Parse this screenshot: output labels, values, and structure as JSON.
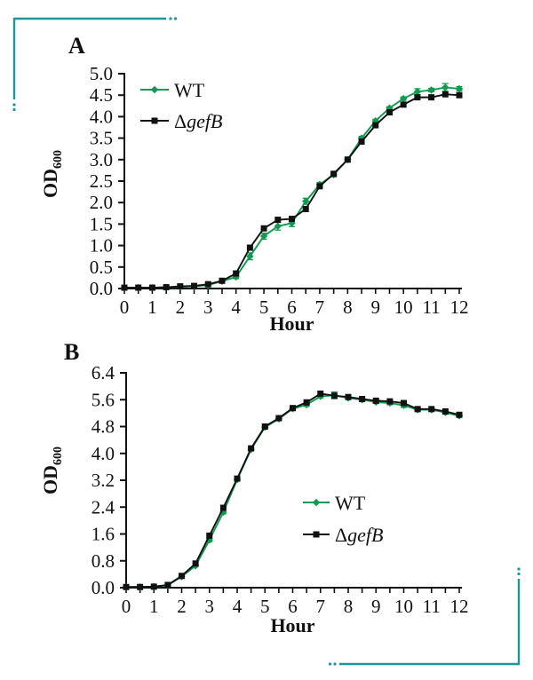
{
  "figure": {
    "background": "#ffffff",
    "bracket_color": "#1e9598"
  },
  "chart_data": [
    {
      "id": "A",
      "panel_label": "A",
      "type": "line",
      "title": "",
      "xlabel": "Hour",
      "ylabel": "OD",
      "ylabel_subscript": "600",
      "xlim": [
        0,
        12
      ],
      "ylim": [
        0,
        5.0
      ],
      "ytick_step": 0.5,
      "xtick_minor_step": 0.5,
      "xtick_label_step": 1,
      "ytick_labels": [
        "0.0",
        "0.5",
        "1.0",
        "1.5",
        "2.0",
        "2.5",
        "3.0",
        "3.5",
        "4.0",
        "4.5",
        "5.0"
      ],
      "xtick_labels": [
        "0",
        "1",
        "2",
        "3",
        "4",
        "5",
        "6",
        "7",
        "8",
        "9",
        "10",
        "11",
        "12"
      ],
      "grid": false,
      "legend_position": "upper-left-inside",
      "x": [
        0,
        0.5,
        1,
        1.5,
        2,
        2.5,
        3,
        3.5,
        4,
        4.5,
        5,
        5.5,
        6,
        6.5,
        7,
        7.5,
        8,
        8.5,
        9,
        9.5,
        10,
        10.5,
        11,
        11.5,
        12
      ],
      "series": [
        {
          "name": "WT",
          "label_prefix": "",
          "label_italic": "",
          "label_plain": "WT",
          "color": "#0f9b4f",
          "marker": "diamond",
          "values": [
            0.02,
            0.02,
            0.02,
            0.03,
            0.04,
            0.05,
            0.08,
            0.17,
            0.27,
            0.75,
            1.22,
            1.45,
            1.52,
            2.03,
            2.42,
            2.65,
            3.0,
            3.5,
            3.9,
            4.2,
            4.42,
            4.58,
            4.62,
            4.68,
            4.65
          ],
          "err": [
            0,
            0,
            0,
            0,
            0,
            0,
            0,
            0,
            0.04,
            0.08,
            0.07,
            0.09,
            0.08,
            0.07,
            0.05,
            0.05,
            0.04,
            0.04,
            0.04,
            0.03,
            0.04,
            0.07,
            0.04,
            0.09,
            0.05
          ]
        },
        {
          "name": "ΔgefB",
          "label_prefix": "Δ",
          "label_italic": "gefB",
          "label_plain": "",
          "color": "#111111",
          "marker": "square",
          "values": [
            0.02,
            0.02,
            0.02,
            0.03,
            0.05,
            0.06,
            0.1,
            0.18,
            0.35,
            0.95,
            1.4,
            1.6,
            1.62,
            1.85,
            2.38,
            2.67,
            3.0,
            3.42,
            3.8,
            4.1,
            4.28,
            4.45,
            4.45,
            4.52,
            4.5
          ],
          "err": [
            0,
            0,
            0,
            0,
            0,
            0,
            0,
            0,
            0,
            0,
            0,
            0,
            0,
            0,
            0,
            0,
            0,
            0,
            0,
            0,
            0,
            0,
            0,
            0,
            0
          ]
        }
      ]
    },
    {
      "id": "B",
      "panel_label": "B",
      "type": "line",
      "title": "",
      "xlabel": "Hour",
      "ylabel": "OD",
      "ylabel_subscript": "600",
      "xlim": [
        0,
        12
      ],
      "ylim": [
        0,
        6.4
      ],
      "ytick_step": 0.8,
      "xtick_minor_step": 0.5,
      "xtick_label_step": 1,
      "ytick_labels": [
        "0.0",
        "0.8",
        "1.6",
        "2.4",
        "3.2",
        "4.0",
        "4.8",
        "5.6",
        "6.4"
      ],
      "xtick_labels": [
        "0",
        "1",
        "2",
        "3",
        "4",
        "5",
        "6",
        "7",
        "8",
        "9",
        "10",
        "11",
        "12"
      ],
      "grid": false,
      "legend_position": "center-right-inside",
      "x": [
        0,
        0.5,
        1,
        1.5,
        2,
        2.5,
        3,
        3.5,
        4,
        4.5,
        5,
        5.5,
        6,
        6.5,
        7,
        7.5,
        8,
        8.5,
        9,
        9.5,
        10,
        10.5,
        11,
        11.5,
        12
      ],
      "series": [
        {
          "name": "WT",
          "label_prefix": "",
          "label_italic": "",
          "label_plain": "WT",
          "color": "#0f9b4f",
          "marker": "diamond",
          "values": [
            0.02,
            0.02,
            0.03,
            0.07,
            0.33,
            0.65,
            1.42,
            2.25,
            3.22,
            4.12,
            4.78,
            5.03,
            5.33,
            5.45,
            5.7,
            5.73,
            5.65,
            5.6,
            5.53,
            5.5,
            5.43,
            5.3,
            5.3,
            5.22,
            5.12
          ],
          "err": [
            0,
            0,
            0,
            0,
            0,
            0,
            0.05,
            0.05,
            0.04,
            0.04,
            0.03,
            0.03,
            0.04,
            0.05,
            0.05,
            0.1,
            0.04,
            0.04,
            0.04,
            0.05,
            0.06,
            0.04,
            0.04,
            0.04,
            0.04
          ]
        },
        {
          "name": "ΔgefB",
          "label_prefix": "Δ",
          "label_italic": "gefB",
          "label_plain": "",
          "color": "#111111",
          "marker": "square",
          "values": [
            0.02,
            0.02,
            0.03,
            0.08,
            0.35,
            0.72,
            1.55,
            2.38,
            3.25,
            4.15,
            4.8,
            5.05,
            5.35,
            5.52,
            5.78,
            5.72,
            5.68,
            5.62,
            5.57,
            5.55,
            5.5,
            5.32,
            5.32,
            5.25,
            5.15
          ],
          "err": [
            0,
            0,
            0,
            0,
            0,
            0,
            0,
            0,
            0,
            0,
            0,
            0,
            0,
            0,
            0,
            0,
            0,
            0,
            0,
            0,
            0,
            0,
            0,
            0,
            0
          ]
        }
      ]
    }
  ]
}
